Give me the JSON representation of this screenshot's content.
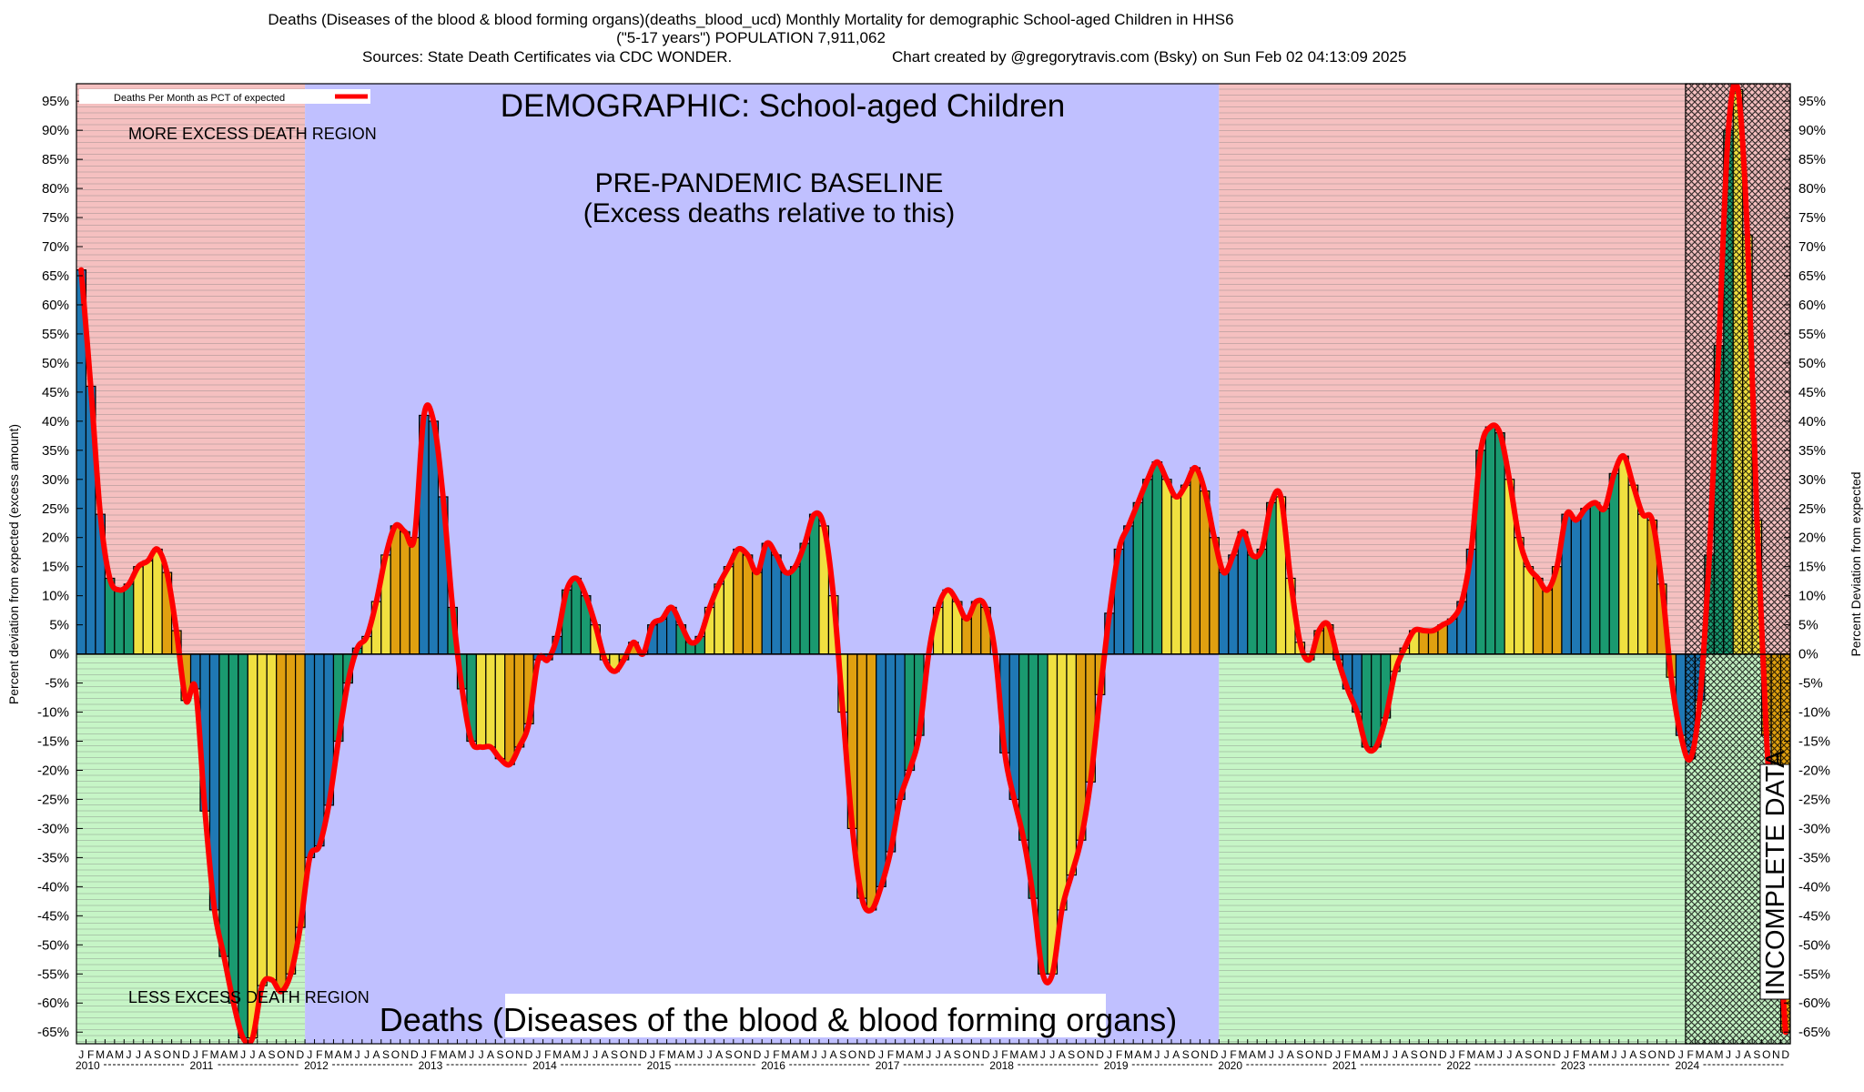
{
  "header": {
    "title_line1": "Deaths (Diseases of the blood & blood forming organs)(deaths_blood_ucd) Monthly Mortality for demographic School-aged Children in HHS6",
    "title_line2": "(\"5-17 years\") POPULATION 7,911,062",
    "sources": "Sources: State Death Certificates via CDC WONDER.",
    "credit": "Chart created by @gregorytravis.com (Bsky) on Sun Feb 02 04:13:09 2025"
  },
  "colors": {
    "excess_region": "#f5c0c0",
    "less_region": "#c6f5c6",
    "baseline_region": "#c0c0ff",
    "line": "#ff0000",
    "bar_palette": [
      "#1f78b4",
      "#1a9a70",
      "#f0e040",
      "#e0a010"
    ]
  },
  "chart_data": {
    "type": "bar",
    "ylabel_left": "Percent deviation from expected (excess amount)",
    "ylabel_right": "Percent Deviation from expected",
    "ylim": [
      -67,
      98
    ],
    "yticks": [
      -65,
      -60,
      -55,
      -50,
      -45,
      -40,
      -35,
      -30,
      -25,
      -20,
      -15,
      -10,
      -5,
      0,
      5,
      10,
      15,
      20,
      25,
      30,
      35,
      40,
      45,
      50,
      55,
      60,
      65,
      70,
      75,
      80,
      85,
      90,
      95
    ],
    "legend": {
      "label": "Deaths Per Month as PCT of expected",
      "placement": "top-left"
    },
    "annotations": {
      "more_excess": "MORE EXCESS DEATH REGION",
      "less_excess": "LESS EXCESS DEATH REGION",
      "demographic": "DEMOGRAPHIC: School-aged Children",
      "baseline_line1": "PRE-PANDEMIC BASELINE",
      "baseline_line2": "(Excess deaths relative to this)",
      "cause": "Deaths (Diseases of the blood & blood forming organs)",
      "incomplete": "INCOMPLETE DATA"
    },
    "month_labels": [
      "J",
      "F",
      "M",
      "A",
      "M",
      "J",
      "J",
      "A",
      "S",
      "O",
      "N",
      "D"
    ],
    "years": [
      "2010",
      "2011",
      "2012",
      "2013",
      "2014",
      "2015",
      "2016",
      "2017",
      "2018",
      "2019",
      "2020",
      "2021",
      "2022",
      "2023",
      "2024"
    ],
    "baseline_period": [
      "2012-01",
      "2019-12"
    ],
    "incomplete_period": [
      "2024-02",
      "2024-12"
    ],
    "values": [
      66,
      46,
      24,
      13,
      11,
      12,
      15,
      16,
      18,
      14,
      4,
      -8,
      -6,
      -27,
      -44,
      -52,
      -60,
      -66,
      -66,
      -57,
      -56,
      -58,
      -55,
      -47,
      -35,
      -33,
      -26,
      -15,
      -5,
      1,
      3,
      9,
      17,
      22,
      21,
      20,
      41,
      40,
      27,
      8,
      -6,
      -15,
      -16,
      -16,
      -18,
      -19,
      -16,
      -12,
      -1,
      -1,
      3,
      11,
      13,
      10,
      5,
      -1,
      -3,
      -1,
      2,
      0,
      5,
      6,
      8,
      5,
      2,
      3,
      8,
      12,
      15,
      18,
      17,
      14,
      19,
      17,
      14,
      15,
      19,
      24,
      22,
      10,
      -10,
      -30,
      -42,
      -44,
      -40,
      -34,
      -25,
      -20,
      -14,
      0,
      8,
      11,
      9,
      6,
      9,
      8,
      0,
      -17,
      -25,
      -32,
      -42,
      -55,
      -55,
      -44,
      -38,
      -32,
      -22,
      -7,
      7,
      18,
      22,
      26,
      30,
      33,
      30,
      27,
      29,
      32,
      28,
      20,
      14,
      17,
      21,
      17,
      18,
      26,
      27,
      13,
      2,
      -1,
      4,
      5,
      -1,
      -6,
      -10,
      -16,
      -16,
      -11,
      -3,
      1,
      4,
      4,
      4,
      5,
      6,
      9,
      18,
      35,
      39,
      38,
      30,
      20,
      15,
      13,
      11,
      15,
      24,
      23,
      25,
      26,
      25,
      31,
      34,
      29,
      24,
      23,
      12,
      -4,
      -14,
      -18,
      -8,
      17,
      53,
      90,
      97,
      72,
      23,
      -14,
      -40,
      -65
    ]
  }
}
